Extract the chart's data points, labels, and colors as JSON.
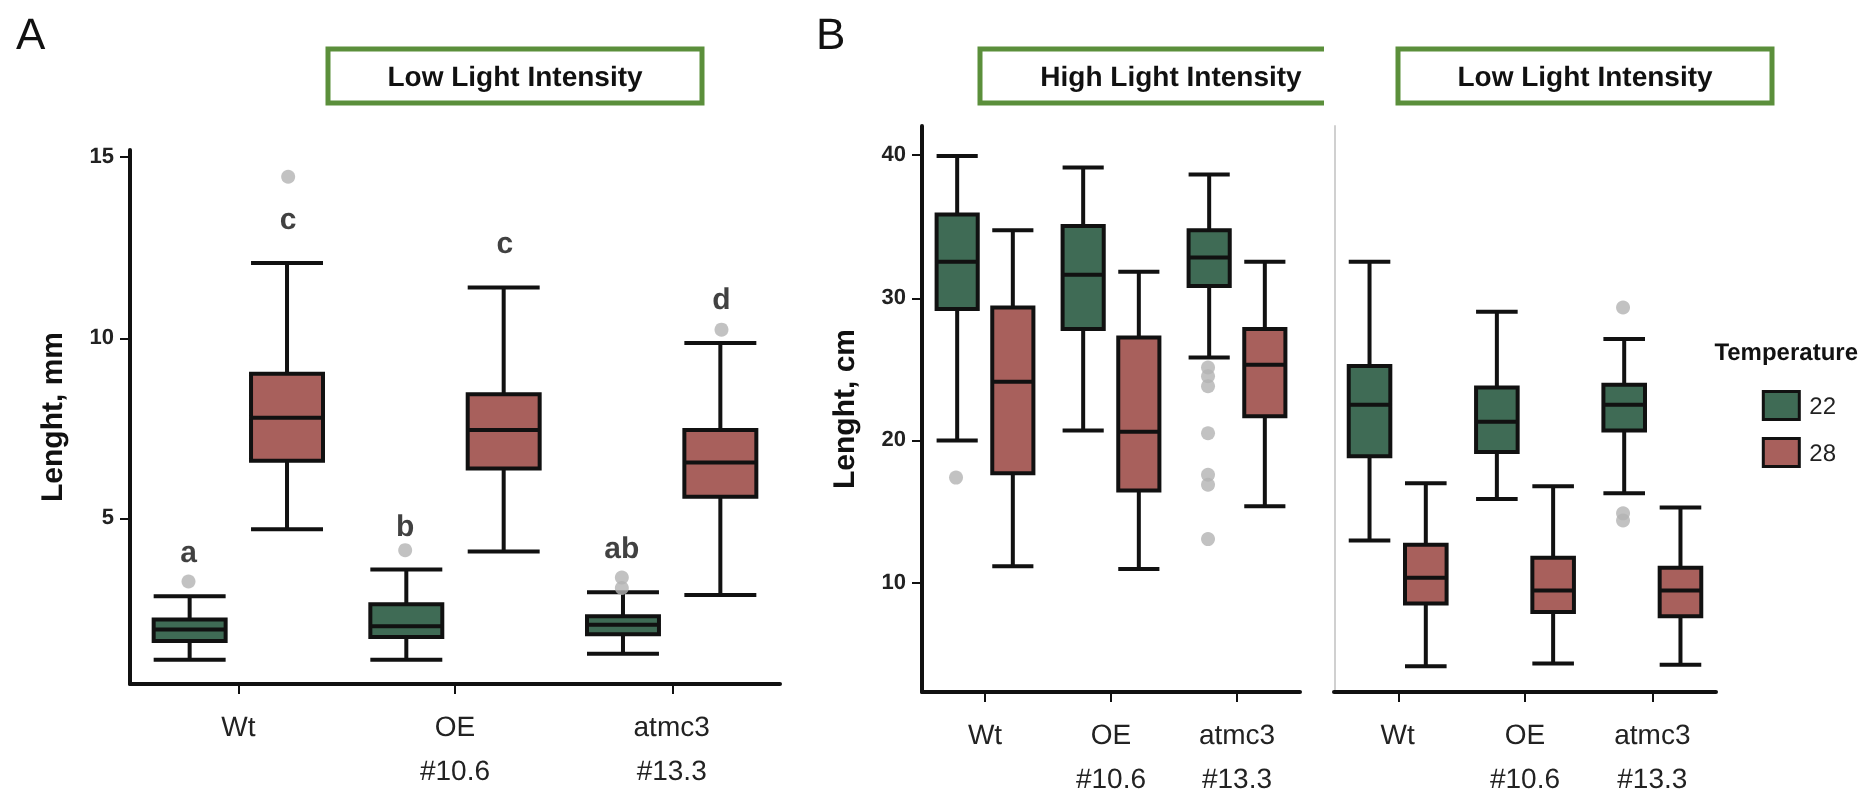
{
  "chart_data": [
    {
      "type": "box",
      "title": "Low Light Intensity",
      "ylabel": "Lenght, mm",
      "categories": [
        "Wt",
        "OE\n#10.6",
        "atmc3\n#13.3"
      ],
      "ylim": [
        0.4,
        15.2
      ],
      "yticks": [
        5,
        10,
        15
      ],
      "grid": false,
      "legend": false,
      "marker": "circle",
      "annotations": [
        "A",
        "a",
        "c",
        "b",
        "c",
        "ab",
        "d"
      ],
      "series": [
        {
          "color": "#3f6b55",
          "boxes": [
            {
              "low": 1.07,
              "q1": 1.59,
              "median": 1.91,
              "q3": 2.19,
              "high": 2.83,
              "outliers": [
                3.24
              ]
            },
            {
              "low": 1.07,
              "q1": 1.7,
              "median": 2.0,
              "q3": 2.61,
              "high": 3.57,
              "outliers": [
                4.11
              ]
            },
            {
              "low": 1.24,
              "q1": 1.78,
              "median": 2.04,
              "q3": 2.28,
              "high": 2.94,
              "outliers": [
                3.06,
                3.35
              ]
            }
          ]
        },
        {
          "color": "#a8605c",
          "boxes": [
            {
              "low": 4.69,
              "q1": 6.59,
              "median": 7.78,
              "q3": 9.0,
              "high": 12.07,
              "outliers": [
                14.46
              ]
            },
            {
              "low": 4.07,
              "q1": 6.37,
              "median": 7.44,
              "q3": 8.43,
              "high": 11.39
            },
            {
              "low": 2.87,
              "q1": 5.59,
              "median": 6.54,
              "q3": 7.44,
              "high": 9.85,
              "outliers": [
                10.22
              ]
            }
          ]
        }
      ]
    },
    {
      "type": "box",
      "title": "High Light Intensity",
      "ylabel": "Lenght, cm",
      "categories": [
        "Wt",
        "OE\n#10.6",
        "atmc3\n#13.3"
      ],
      "ylim": [
        2.4,
        42
      ],
      "yticks": [
        10,
        20,
        30,
        40
      ],
      "grid": false,
      "legend": false,
      "marker": "circle",
      "annotations": [
        "B"
      ],
      "series": [
        {
          "color": "#3f6b55",
          "boxes": [
            {
              "low": 20.0,
              "q1": 29.2,
              "median": 32.5,
              "q3": 35.8,
              "high": 39.9,
              "outliers": [
                17.4
              ]
            },
            {
              "low": 20.7,
              "q1": 27.8,
              "median": 31.6,
              "q3": 35.0,
              "high": 39.1
            },
            {
              "low": 25.8,
              "q1": 30.8,
              "median": 32.8,
              "q3": 34.7,
              "high": 38.6,
              "outliers": [
                25.1,
                24.5,
                23.8,
                20.5,
                17.6,
                16.9,
                13.1
              ]
            }
          ]
        },
        {
          "color": "#a8605c",
          "boxes": [
            {
              "low": 11.2,
              "q1": 17.7,
              "median": 24.1,
              "q3": 29.3,
              "high": 34.7
            },
            {
              "low": 11.0,
              "q1": 16.5,
              "median": 20.6,
              "q3": 27.2,
              "high": 31.8
            },
            {
              "low": 15.4,
              "q1": 21.7,
              "median": 25.3,
              "q3": 27.8,
              "high": 32.5
            }
          ]
        }
      ]
    },
    {
      "type": "box",
      "title": "Low Light Intensity",
      "categories": [
        "Wt",
        "OE\n#10.6",
        "atmc3\n#13.3"
      ],
      "ylim": [
        2.4,
        42
      ],
      "yticks": [
        10,
        20,
        30,
        40
      ],
      "tick_labels": "x",
      "grid": false,
      "legend": "right",
      "legend_title": "Temperature",
      "marker": "circle",
      "series": [
        {
          "name": "22",
          "color": "#3f6b55",
          "boxes": [
            {
              "low": 13.0,
              "q1": 18.9,
              "median": 22.5,
              "q3": 25.2,
              "high": 32.5
            },
            {
              "low": 15.9,
              "q1": 19.2,
              "median": 21.3,
              "q3": 23.7,
              "high": 29.0
            },
            {
              "low": 16.3,
              "q1": 20.7,
              "median": 22.5,
              "q3": 23.9,
              "high": 27.1,
              "outliers": [
                29.3,
                14.9,
                14.4
              ]
            }
          ]
        },
        {
          "name": "28",
          "color": "#a8605c",
          "boxes": [
            {
              "low": 4.2,
              "q1": 8.6,
              "median": 10.4,
              "q3": 12.7,
              "high": 17.0
            },
            {
              "low": 4.4,
              "q1": 8.0,
              "median": 9.5,
              "q3": 11.8,
              "high": 16.8
            },
            {
              "low": 4.3,
              "q1": 7.7,
              "median": 9.5,
              "q3": 11.1,
              "high": 15.3
            }
          ]
        }
      ]
    }
  ]
}
